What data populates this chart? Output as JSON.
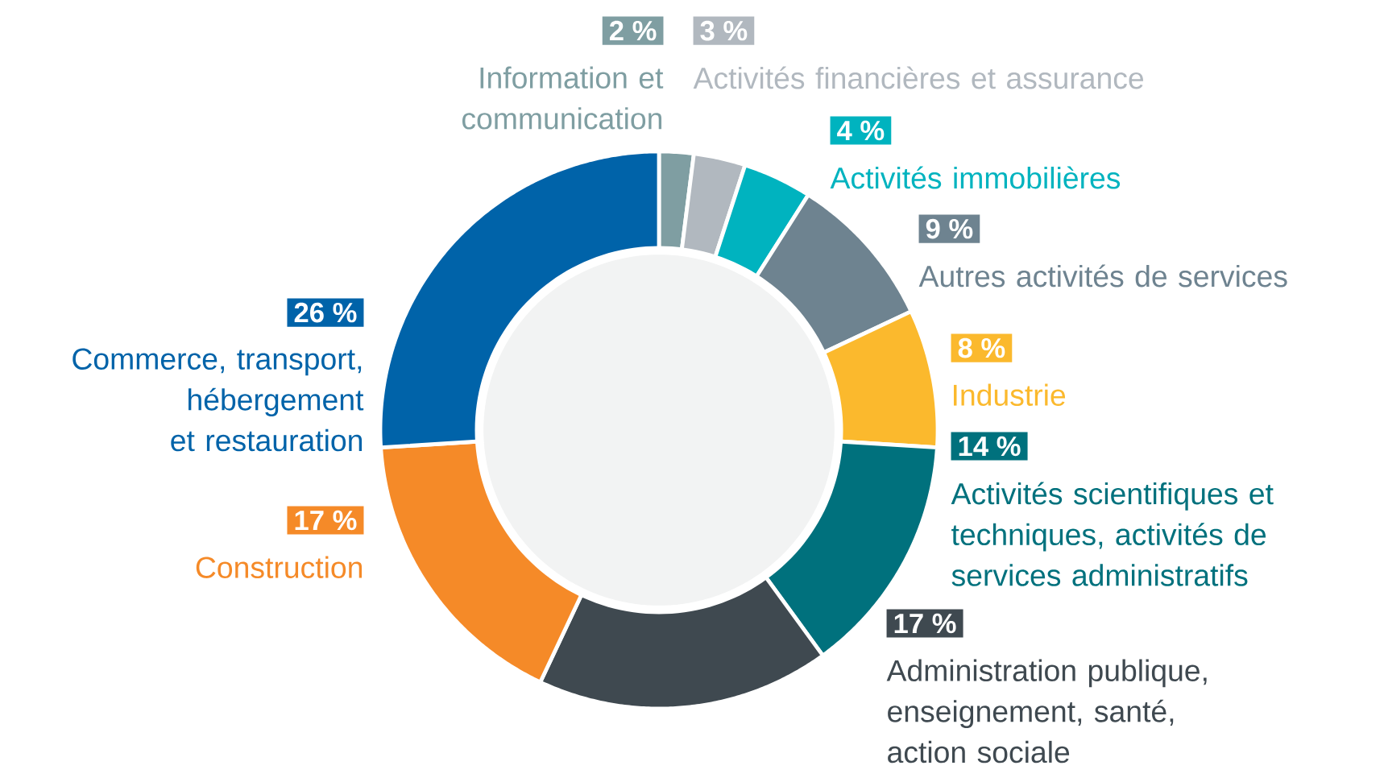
{
  "chart_data": {
    "type": "donut",
    "categories": [
      "Information et communication",
      "Activités financières et assurance",
      "Activités immobilières",
      "Autres activités de services",
      "Industrie",
      "Activités scientifiques et techniques, activités de services administratifs",
      "Administration publique, enseignement, santé, action sociale",
      "Construction",
      "Commerce, transport, hébergement et restauration"
    ],
    "values": [
      2,
      3,
      4,
      9,
      8,
      14,
      17,
      17,
      26
    ],
    "value_labels": [
      "2 %",
      "3 %",
      "4 %",
      "9 %",
      "8 %",
      "14 %",
      "17 %",
      "17 %",
      "26 %"
    ],
    "colors": [
      "#7f9ea2",
      "#b1b8bf",
      "#00b3bf",
      "#6e8390",
      "#fbb92d",
      "#00717d",
      "#3f4950",
      "#f58a28",
      "#0063a9"
    ],
    "legend": "right"
  }
}
